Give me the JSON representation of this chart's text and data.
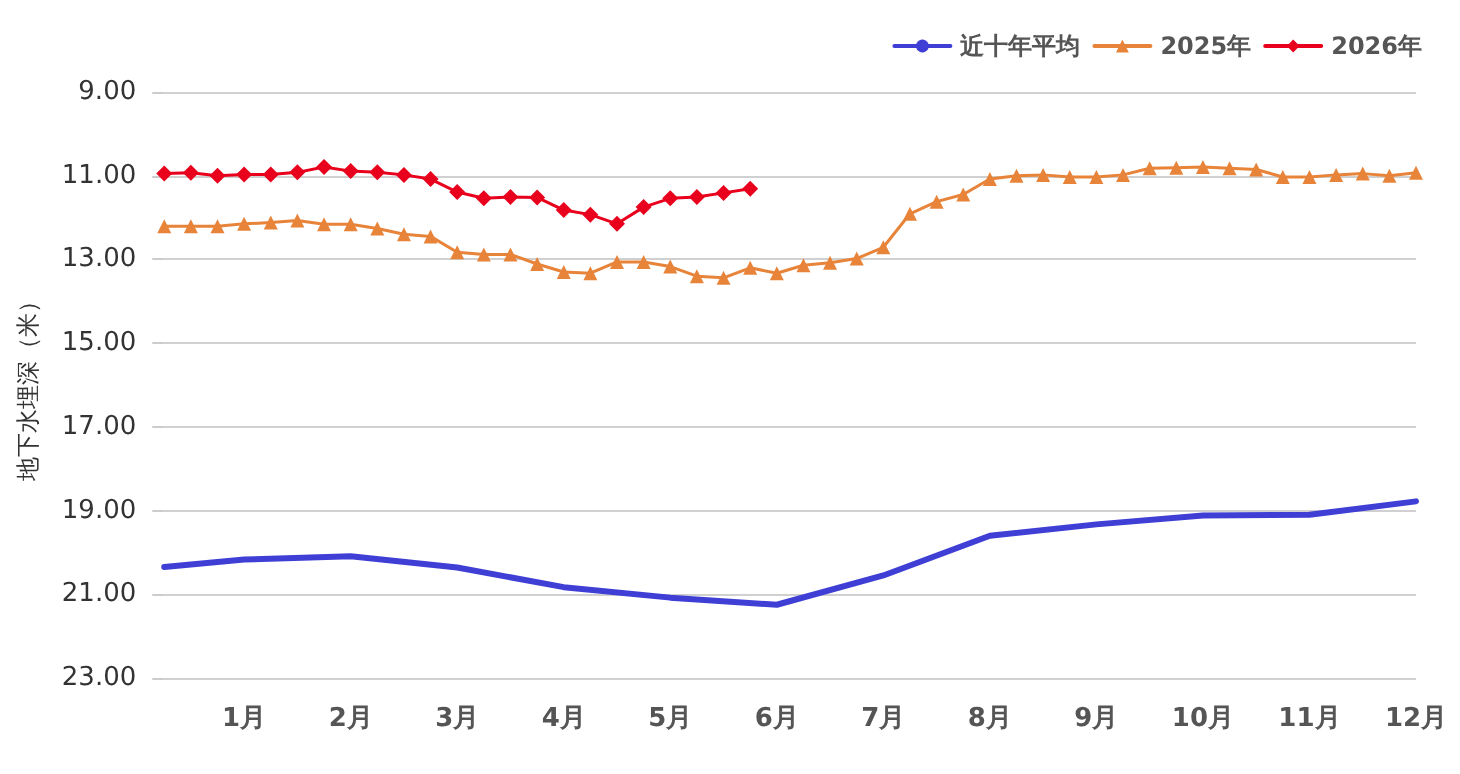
{
  "chart_data": {
    "type": "line",
    "ylabel": "地下水埋深（米）",
    "categories": [
      null,
      null,
      null,
      "1月",
      null,
      null,
      null,
      "2月",
      null,
      null,
      null,
      "3月",
      null,
      null,
      null,
      "4月",
      null,
      null,
      null,
      "5月",
      null,
      null,
      null,
      "6月",
      null,
      null,
      null,
      "7月",
      null,
      null,
      null,
      "8月",
      null,
      null,
      null,
      "9月",
      null,
      null,
      null,
      "10月",
      null,
      null,
      null,
      "11月",
      null,
      null,
      null,
      "12月"
    ],
    "series": [
      {
        "name": "近十年平均",
        "color": "#3f3fd6",
        "marker": "none",
        "values": [
          20.35,
          null,
          null,
          20.17,
          null,
          null,
          null,
          20.09,
          null,
          null,
          null,
          20.36,
          null,
          null,
          null,
          20.83,
          null,
          null,
          null,
          21.08,
          null,
          null,
          null,
          21.25,
          null,
          null,
          null,
          20.55,
          null,
          null,
          null,
          19.6,
          null,
          null,
          null,
          19.33,
          null,
          null,
          null,
          19.12,
          null,
          null,
          null,
          19.1,
          null,
          null,
          null,
          18.78
        ]
      },
      {
        "name": "2025年",
        "color": "#e8843a",
        "marker": "triangle",
        "values": [
          12.21,
          12.21,
          12.21,
          12.15,
          12.12,
          12.07,
          12.16,
          12.16,
          12.26,
          12.4,
          12.45,
          12.83,
          12.88,
          12.88,
          13.11,
          13.3,
          13.33,
          13.06,
          13.06,
          13.17,
          13.4,
          13.44,
          13.2,
          13.33,
          13.14,
          13.08,
          12.98,
          12.71,
          11.91,
          11.62,
          11.45,
          11.08,
          11.0,
          10.98,
          11.03,
          11.03,
          10.98,
          10.82,
          10.81,
          10.79,
          10.82,
          10.85,
          11.03,
          11.03,
          10.98,
          10.95,
          11.0,
          10.93
        ]
      },
      {
        "name": "2026年",
        "color": "#e8001c",
        "marker": "diamond",
        "values": [
          10.95,
          10.93,
          11.0,
          10.97,
          10.97,
          10.92,
          10.79,
          10.89,
          10.92,
          10.98,
          11.08,
          11.39,
          11.54,
          11.51,
          11.52,
          11.82,
          11.93,
          12.15,
          11.75,
          11.54,
          11.51,
          11.41,
          11.31,
          null,
          null,
          null,
          null,
          null,
          null,
          null,
          null,
          null,
          null,
          null,
          null,
          null,
          null,
          null,
          null,
          null,
          null,
          null,
          null,
          null,
          null,
          null,
          null,
          null
        ]
      }
    ],
    "ylim": [
      23,
      9
    ],
    "yticks": [
      {
        "value": 9,
        "label": "9.00"
      },
      {
        "value": 11,
        "label": "11.00"
      },
      {
        "value": 13,
        "label": "13.00"
      },
      {
        "value": 15,
        "label": "15.00"
      },
      {
        "value": 17,
        "label": "17.00"
      },
      {
        "value": 19,
        "label": "19.00"
      },
      {
        "value": 21,
        "label": "21.00"
      },
      {
        "value": 23,
        "label": "23.00"
      }
    ],
    "grid": "y",
    "legend": "top right"
  }
}
